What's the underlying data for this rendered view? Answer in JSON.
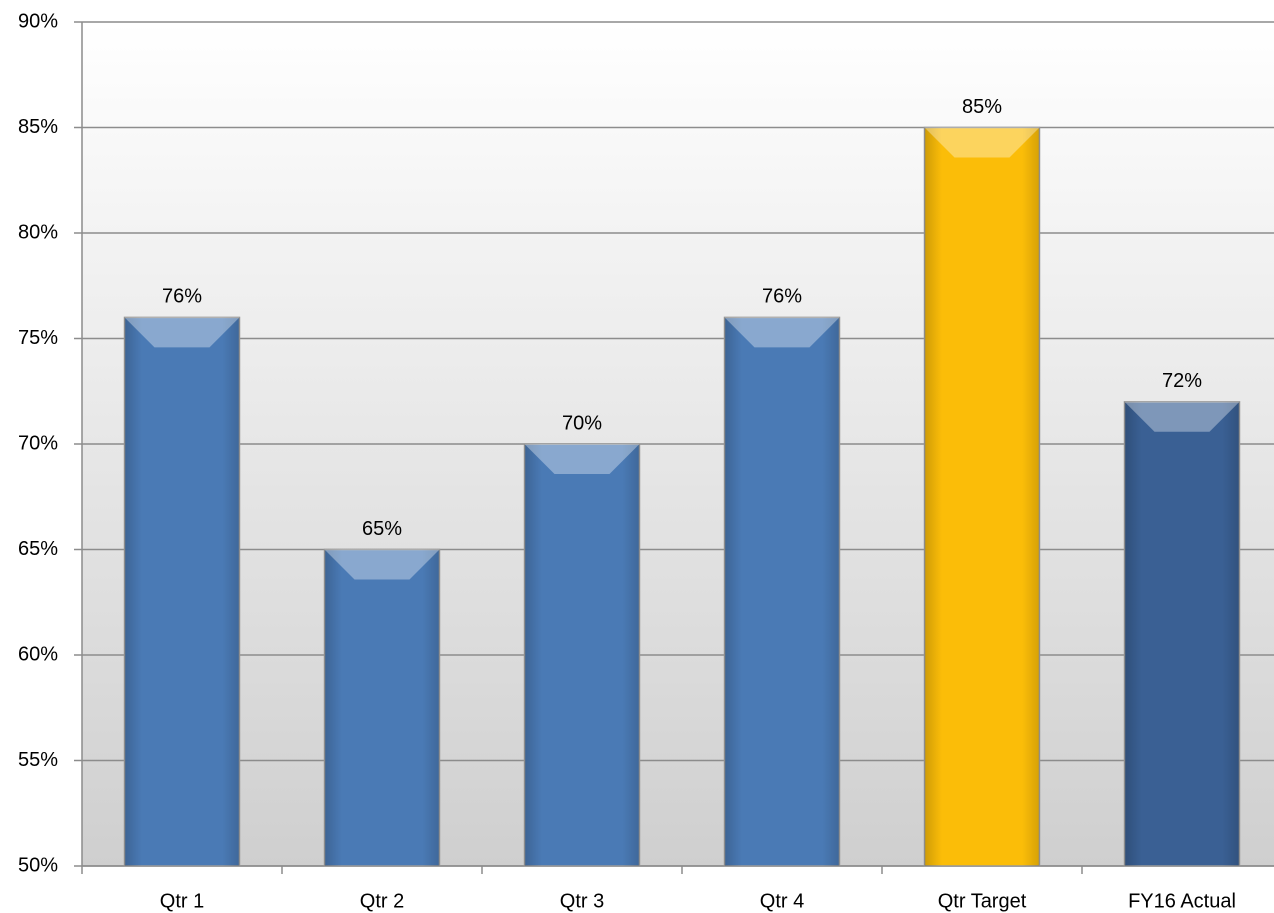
{
  "chart_data": {
    "type": "bar",
    "categories": [
      "Qtr 1",
      "Qtr 2",
      "Qtr 3",
      "Qtr 4",
      "Qtr Target",
      "FY16 Actual"
    ],
    "values": [
      76,
      65,
      70,
      76,
      85,
      72
    ],
    "value_labels": [
      "76%",
      "65%",
      "70%",
      "76%",
      "85%",
      "72%"
    ],
    "colors": [
      "#4a7ab5",
      "#4a7ab5",
      "#4a7ab5",
      "#4a7ab5",
      "#fbbd08",
      "#3a6094"
    ],
    "ylim": [
      50,
      90
    ],
    "yticks": [
      {
        "value": 50,
        "label": "50%"
      },
      {
        "value": 55,
        "label": "55%"
      },
      {
        "value": 60,
        "label": "60%"
      },
      {
        "value": 65,
        "label": "65%"
      },
      {
        "value": 70,
        "label": "70%"
      },
      {
        "value": 75,
        "label": "75%"
      },
      {
        "value": 80,
        "label": "80%"
      },
      {
        "value": 85,
        "label": "85%"
      },
      {
        "value": 90,
        "label": "90%"
      }
    ],
    "grid": true
  }
}
